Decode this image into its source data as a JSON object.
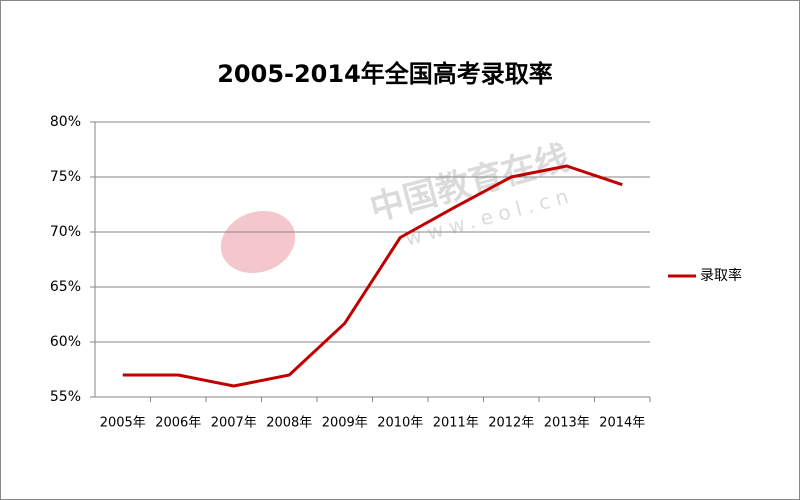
{
  "chart_data": {
    "type": "line",
    "title": "2005-2014年全国高考录取率",
    "categories": [
      "2005年",
      "2006年",
      "2007年",
      "2008年",
      "2009年",
      "2010年",
      "2011年",
      "2012年",
      "2013年",
      "2014年"
    ],
    "series": [
      {
        "name": "录取率",
        "color": "#c00000",
        "values": [
          57,
          57,
          56,
          57,
          61.7,
          69.5,
          72.3,
          75,
          76,
          74.3
        ]
      }
    ],
    "ylim": [
      55,
      80
    ],
    "yticks": [
      {
        "value": 55,
        "label": "55%"
      },
      {
        "value": 60,
        "label": "60%"
      },
      {
        "value": 65,
        "label": "65%"
      },
      {
        "value": 70,
        "label": "70%"
      },
      {
        "value": 75,
        "label": "75%"
      },
      {
        "value": 80,
        "label": "80%"
      }
    ],
    "grid": true,
    "legend": "right",
    "watermark": {
      "brand": "中国教育在线",
      "url": "www.eol.cn"
    }
  }
}
